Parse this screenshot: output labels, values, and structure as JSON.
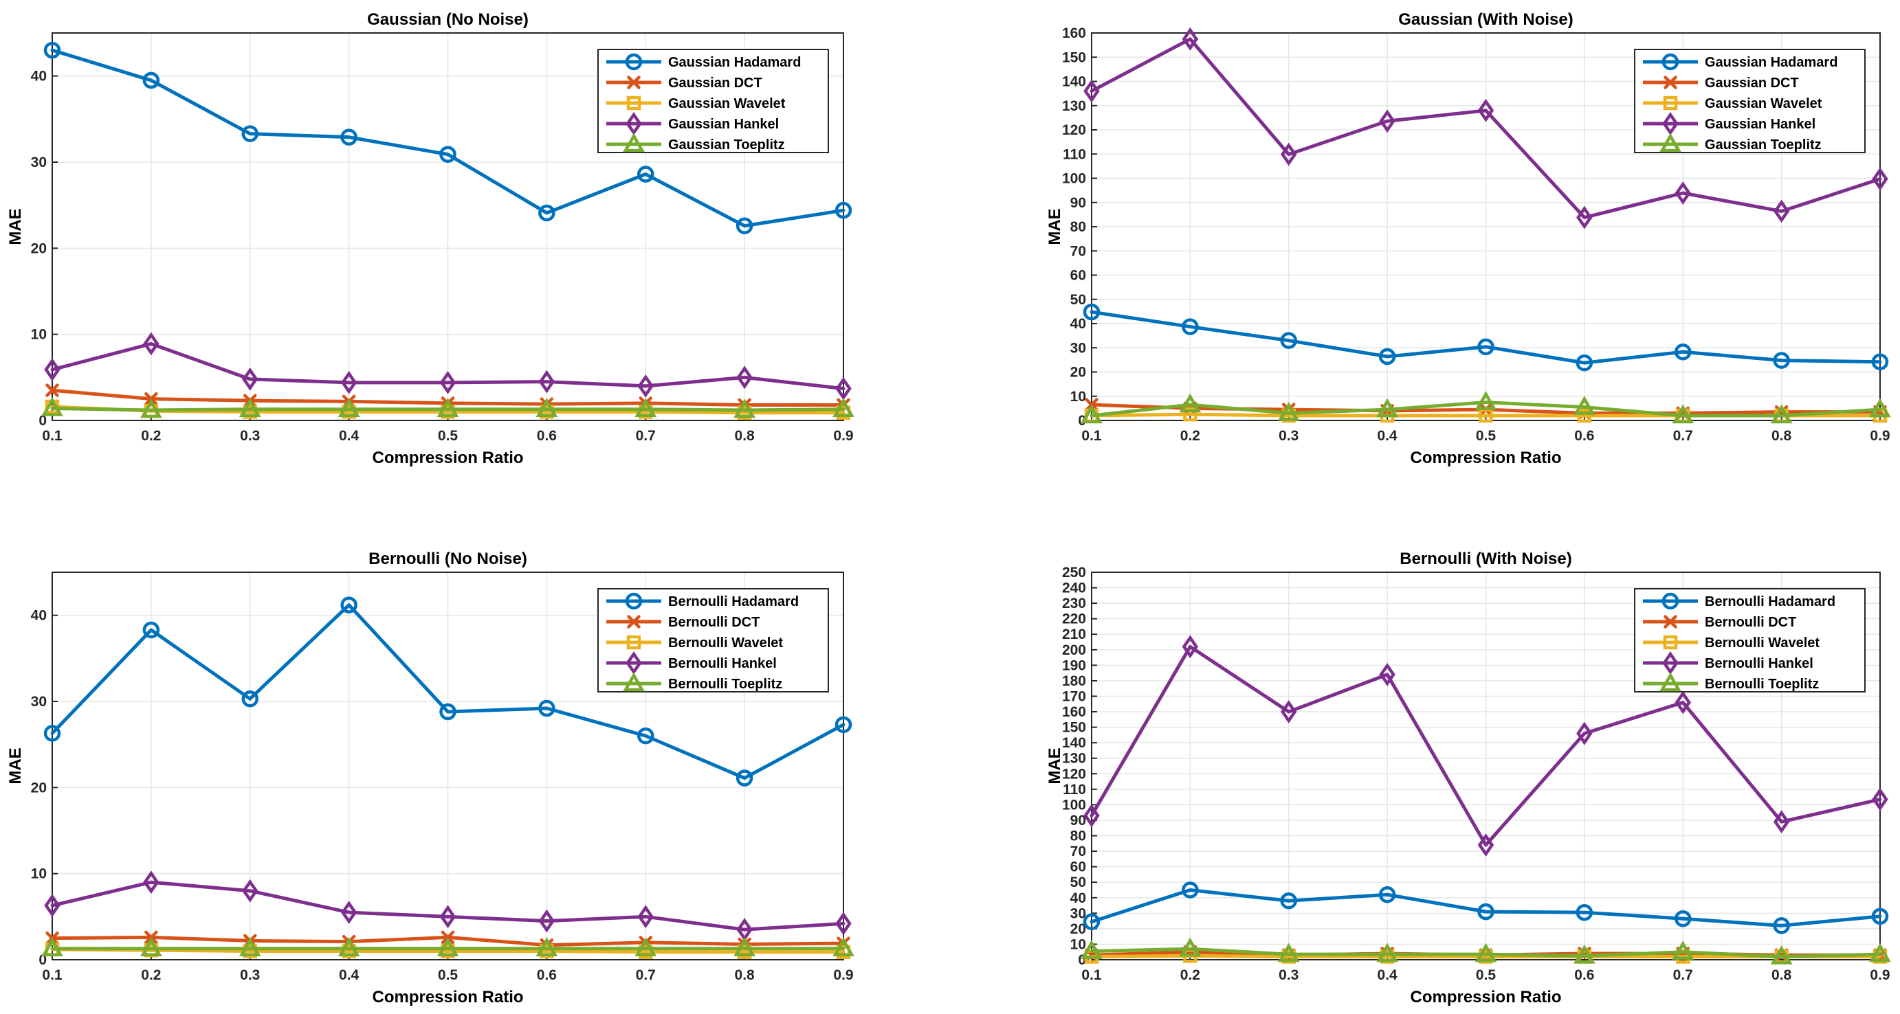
{
  "colors": {
    "hadamard": "#0072BD",
    "dct": "#D95319",
    "wavelet": "#EDB120",
    "hankel": "#7E2F8E",
    "toeplitz": "#77AC30"
  },
  "chart_data": [
    {
      "type": "line",
      "title": "Gaussian (No Noise)",
      "xlabel": "Compression Ratio",
      "ylabel": "MAE",
      "x": [
        0.1,
        0.2,
        0.3,
        0.4,
        0.5,
        0.6,
        0.7,
        0.8,
        0.9
      ],
      "xtick_labels": [
        "0.1",
        "0.2",
        "0.3",
        "0.4",
        "0.5",
        "0.6",
        "0.7",
        "0.8",
        "0.9"
      ],
      "ylim": [
        0,
        45
      ],
      "yticks": [
        0,
        10,
        20,
        30,
        40
      ],
      "grid": true,
      "legend_location": "top-right",
      "series": [
        {
          "name": "Gaussian Hadamard",
          "marker": "circle",
          "color_key": "hadamard",
          "values": [
            43.0,
            39.5,
            33.3,
            32.9,
            30.9,
            24.1,
            28.6,
            22.6,
            24.4
          ]
        },
        {
          "name": "Gaussian DCT",
          "marker": "x",
          "color_key": "dct",
          "values": [
            3.5,
            2.5,
            2.3,
            2.2,
            2.0,
            1.9,
            2.0,
            1.8,
            1.8
          ]
        },
        {
          "name": "Gaussian Wavelet",
          "marker": "square",
          "color_key": "wavelet",
          "values": [
            1.6,
            1.1,
            1.0,
            1.0,
            1.0,
            1.0,
            1.0,
            0.9,
            0.9
          ]
        },
        {
          "name": "Gaussian Hankel",
          "marker": "diamond",
          "color_key": "hankel",
          "values": [
            5.9,
            8.9,
            4.8,
            4.4,
            4.4,
            4.5,
            4.0,
            5.0,
            3.7
          ]
        },
        {
          "name": "Gaussian Toeplitz",
          "marker": "triangle",
          "color_key": "toeplitz",
          "values": [
            1.4,
            1.2,
            1.3,
            1.3,
            1.3,
            1.3,
            1.3,
            1.2,
            1.3
          ]
        }
      ]
    },
    {
      "type": "line",
      "title": "Gaussian (With Noise)",
      "xlabel": "Compression Ratio",
      "ylabel": "MAE",
      "x": [
        0.1,
        0.2,
        0.3,
        0.4,
        0.5,
        0.6,
        0.7,
        0.8,
        0.9
      ],
      "xtick_labels": [
        "0.1",
        "0.2",
        "0.3",
        "0.4",
        "0.5",
        "0.6",
        "0.7",
        "0.8",
        "0.9"
      ],
      "ylim": [
        0,
        160
      ],
      "yticks": [
        0,
        10,
        20,
        30,
        40,
        50,
        60,
        70,
        80,
        90,
        100,
        110,
        120,
        130,
        140,
        150,
        160
      ],
      "grid": true,
      "legend_location": "top-right",
      "series": [
        {
          "name": "Gaussian Hadamard",
          "marker": "circle",
          "color_key": "hadamard",
          "values": [
            44.8,
            38.7,
            33.0,
            26.4,
            30.4,
            23.8,
            28.3,
            24.8,
            24.2
          ]
        },
        {
          "name": "Gaussian DCT",
          "marker": "x",
          "color_key": "dct",
          "values": [
            6.5,
            5.0,
            4.5,
            4.0,
            4.5,
            3.0,
            3.0,
            3.5,
            3.5
          ]
        },
        {
          "name": "Gaussian Wavelet",
          "marker": "square",
          "color_key": "wavelet",
          "values": [
            2.0,
            2.5,
            2.0,
            2.0,
            2.0,
            2.0,
            2.0,
            2.0,
            2.0
          ]
        },
        {
          "name": "Gaussian Hankel",
          "marker": "diamond",
          "color_key": "hankel",
          "values": [
            136.0,
            157.5,
            109.9,
            123.6,
            128.0,
            83.8,
            93.9,
            86.4,
            99.7
          ]
        },
        {
          "name": "Gaussian Toeplitz",
          "marker": "triangle",
          "color_key": "toeplitz",
          "values": [
            2.0,
            6.5,
            3.0,
            4.5,
            7.5,
            5.5,
            2.0,
            2.0,
            4.5
          ]
        }
      ]
    },
    {
      "type": "line",
      "title": "Bernoulli (No Noise)",
      "xlabel": "Compression Ratio",
      "ylabel": "MAE",
      "x": [
        0.1,
        0.2,
        0.3,
        0.4,
        0.5,
        0.6,
        0.7,
        0.8,
        0.9
      ],
      "xtick_labels": [
        "0.1",
        "0.2",
        "0.3",
        "0.4",
        "0.5",
        "0.6",
        "0.7",
        "0.8",
        "0.9"
      ],
      "ylim": [
        0,
        45
      ],
      "yticks": [
        0,
        10,
        20,
        30,
        40
      ],
      "grid": true,
      "legend_location": "top-right",
      "series": [
        {
          "name": "Bernoulli Hadamard",
          "marker": "circle",
          "color_key": "hadamard",
          "values": [
            26.3,
            38.3,
            30.3,
            41.2,
            28.8,
            29.2,
            26.0,
            21.1,
            27.3
          ]
        },
        {
          "name": "Bernoulli DCT",
          "marker": "x",
          "color_key": "dct",
          "values": [
            2.5,
            2.6,
            2.2,
            2.1,
            2.6,
            1.7,
            2.0,
            1.8,
            1.9
          ]
        },
        {
          "name": "Bernoulli Wavelet",
          "marker": "square",
          "color_key": "wavelet",
          "values": [
            1.2,
            1.1,
            1.0,
            1.0,
            1.0,
            1.0,
            0.9,
            0.9,
            0.9
          ]
        },
        {
          "name": "Bernoulli Hankel",
          "marker": "diamond",
          "color_key": "hankel",
          "values": [
            6.3,
            9.0,
            8.0,
            5.5,
            5.0,
            4.5,
            5.0,
            3.5,
            4.2
          ]
        },
        {
          "name": "Bernoulli Toeplitz",
          "marker": "triangle",
          "color_key": "toeplitz",
          "values": [
            1.3,
            1.3,
            1.3,
            1.3,
            1.3,
            1.3,
            1.3,
            1.3,
            1.3
          ]
        }
      ]
    },
    {
      "type": "line",
      "title": "Bernoulli (With Noise)",
      "xlabel": "Compression Ratio",
      "ylabel": "MAE",
      "x": [
        0.1,
        0.2,
        0.3,
        0.4,
        0.5,
        0.6,
        0.7,
        0.8,
        0.9
      ],
      "xtick_labels": [
        "0.1",
        "0.2",
        "0.3",
        "0.4",
        "0.5",
        "0.6",
        "0.7",
        "0.8",
        "0.9"
      ],
      "ylim": [
        0,
        250
      ],
      "yticks": [
        0,
        10,
        20,
        30,
        40,
        50,
        60,
        70,
        80,
        90,
        100,
        110,
        120,
        130,
        140,
        150,
        160,
        170,
        180,
        190,
        200,
        210,
        220,
        230,
        240,
        250
      ],
      "grid": true,
      "legend_location": "top-right",
      "series": [
        {
          "name": "Bernoulli Hadamard",
          "marker": "circle",
          "color_key": "hadamard",
          "values": [
            24.5,
            45.0,
            38.0,
            42.0,
            31.0,
            30.5,
            26.5,
            22.0,
            28.0
          ]
        },
        {
          "name": "Bernoulli DCT",
          "marker": "x",
          "color_key": "dct",
          "values": [
            3.0,
            5.0,
            3.0,
            4.0,
            3.0,
            4.0,
            4.0,
            3.0,
            3.0
          ]
        },
        {
          "name": "Bernoulli Wavelet",
          "marker": "square",
          "color_key": "wavelet",
          "values": [
            2.0,
            2.5,
            2.0,
            2.0,
            2.0,
            2.0,
            2.0,
            2.0,
            2.0
          ]
        },
        {
          "name": "Bernoulli Hankel",
          "marker": "diamond",
          "color_key": "hankel",
          "values": [
            93.0,
            202.0,
            160.0,
            184.0,
            74.0,
            146.0,
            166.0,
            89.0,
            103.5
          ]
        },
        {
          "name": "Bernoulli Toeplitz",
          "marker": "triangle",
          "color_key": "toeplitz",
          "values": [
            5.5,
            7.0,
            3.5,
            3.5,
            3.5,
            2.5,
            5.0,
            2.0,
            3.5
          ]
        }
      ]
    }
  ]
}
